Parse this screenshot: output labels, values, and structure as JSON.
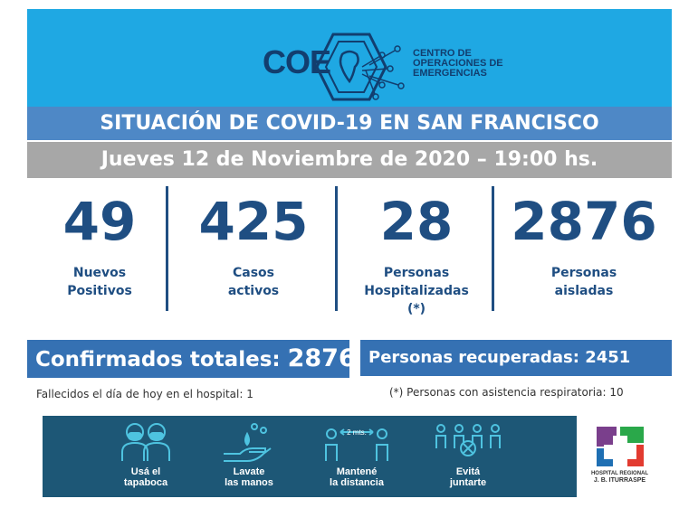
{
  "logo": {
    "abbr": "COE",
    "line1": "CENTRO DE",
    "line2": "OPERACIONES DE",
    "line3": "EMERGENCIAS"
  },
  "title": "SITUACIÓN DE COVID-19 EN SAN FRANCISCO",
  "date": "Jueves 12 de Noviembre de 2020 – 19:00 hs.",
  "stats": [
    {
      "value": "49",
      "label1": "Nuevos",
      "label2": "Positivos",
      "label3": ""
    },
    {
      "value": "425",
      "label1": "Casos",
      "label2": "activos",
      "label3": ""
    },
    {
      "value": "28",
      "label1": "Personas",
      "label2": "Hospitalizadas",
      "label3": "(*)"
    },
    {
      "value": "2876",
      "label1": "Personas",
      "label2": "aisladas",
      "label3": ""
    }
  ],
  "confirmed": {
    "label": "Confirmados totales:",
    "value": "2876"
  },
  "recovered": "Personas recuperadas: 2451",
  "notes": {
    "deaths": "Fallecidos el día de hoy en el hospital:  1",
    "respiratory": "(*) Personas con asistencia respiratoria: 10"
  },
  "tips": [
    {
      "icon": "face-mask-icon",
      "line1": "Usá el",
      "line2": "tapaboca"
    },
    {
      "icon": "hand-wash-icon",
      "line1": "Lavate",
      "line2": "las manos"
    },
    {
      "icon": "social-distance-icon",
      "line1": "Mantené",
      "line2": "la distancia",
      "extra": "2 mts."
    },
    {
      "icon": "no-gathering-icon",
      "line1": "Evitá",
      "line2": "juntarte"
    }
  ],
  "hospital": {
    "line1": "HOSPITAL REGIONAL",
    "line2": "J. B. ITURRASPE"
  },
  "colors": {
    "header": "#1fa8e3",
    "title_bar": "#4e88c6",
    "date_bar": "#a7a7a7",
    "stat_text": "#1f4e82",
    "box": "#3571b3",
    "banner": "#1d5776"
  }
}
